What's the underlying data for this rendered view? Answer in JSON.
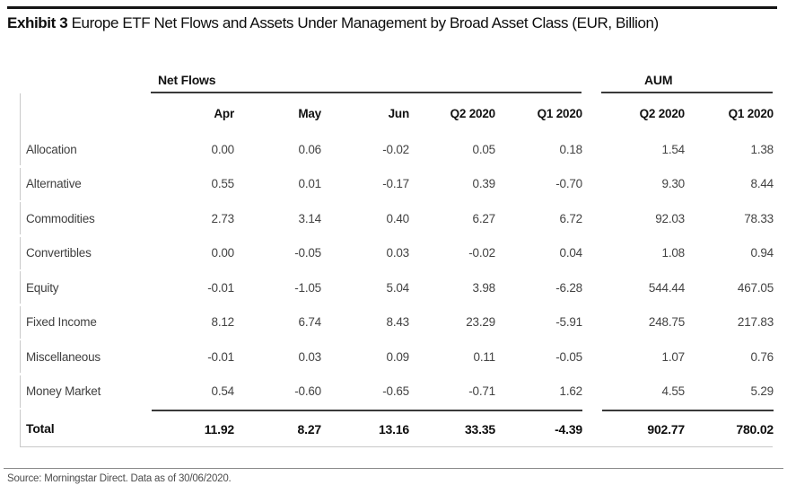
{
  "title": {
    "exhibit": "Exhibit 3",
    "text": "Europe ETF Net Flows and Assets Under Management by Broad Asset Class (EUR, Billion)"
  },
  "table": {
    "groups": {
      "net_flows": "Net Flows",
      "aum": "AUM"
    },
    "columns": [
      "Apr",
      "May",
      "Jun",
      "Q2 2020",
      "Q1 2020",
      "Q2 2020",
      "Q1 2020"
    ],
    "rows": [
      {
        "label": "Allocation",
        "values": [
          "0.00",
          "0.06",
          "-0.02",
          "0.05",
          "0.18",
          "1.54",
          "1.38"
        ]
      },
      {
        "label": "Alternative",
        "values": [
          "0.55",
          "0.01",
          "-0.17",
          "0.39",
          "-0.70",
          "9.30",
          "8.44"
        ]
      },
      {
        "label": "Commodities",
        "values": [
          "2.73",
          "3.14",
          "0.40",
          "6.27",
          "6.72",
          "92.03",
          "78.33"
        ]
      },
      {
        "label": "Convertibles",
        "values": [
          "0.00",
          "-0.05",
          "0.03",
          "-0.02",
          "0.04",
          "1.08",
          "0.94"
        ]
      },
      {
        "label": "Equity",
        "values": [
          "-0.01",
          "-1.05",
          "5.04",
          "3.98",
          "-6.28",
          "544.44",
          "467.05"
        ]
      },
      {
        "label": "Fixed Income",
        "values": [
          "8.12",
          "6.74",
          "8.43",
          "23.29",
          "-5.91",
          "248.75",
          "217.83"
        ]
      },
      {
        "label": "Miscellaneous",
        "values": [
          "-0.01",
          "0.03",
          "0.09",
          "0.11",
          "-0.05",
          "1.07",
          "0.76"
        ]
      },
      {
        "label": "Money Market",
        "values": [
          "0.54",
          "-0.60",
          "-0.65",
          "-0.71",
          "1.62",
          "4.55",
          "5.29"
        ]
      }
    ],
    "total": {
      "label": "Total",
      "values": [
        "11.92",
        "8.27",
        "13.16",
        "33.35",
        "-4.39",
        "902.77",
        "780.02"
      ]
    }
  },
  "footer": {
    "source": "Source: Morningstar Direct. Data as of 30/06/2020."
  },
  "colors": {
    "rule_dark": "#3a3a3a",
    "rule_light": "#c9c9c9",
    "text_data": "#434343",
    "text_header": "#111111"
  }
}
